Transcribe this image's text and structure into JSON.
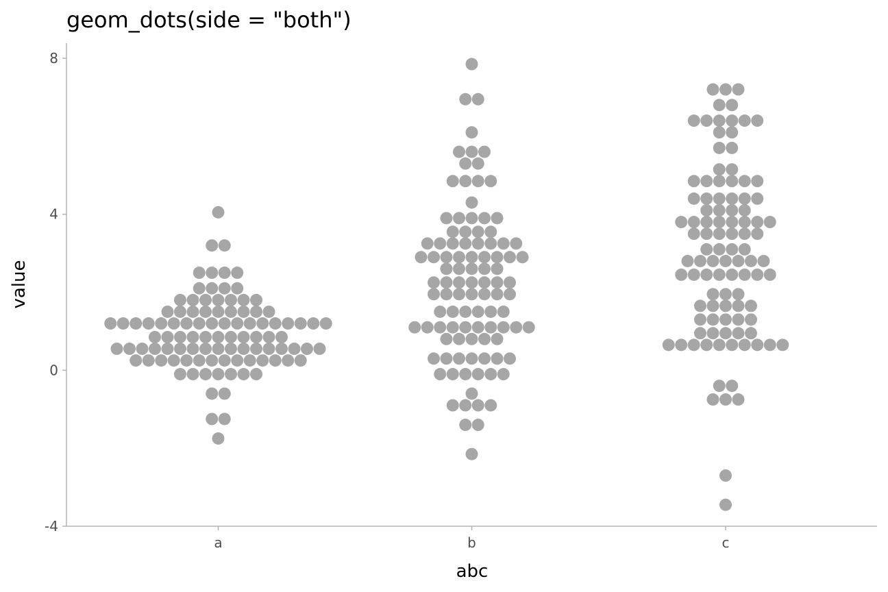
{
  "chart_data": {
    "type": "dotplot",
    "title": "geom_dots(side = \"both\")",
    "xlabel": "abc",
    "ylabel": "value",
    "ylim": [
      -4,
      8
    ],
    "yticks": [
      -4,
      0,
      4,
      8
    ],
    "categories": [
      "a",
      "b",
      "c"
    ],
    "grid": false,
    "dot_color": "#a6a6a6",
    "bins": {
      "a": [
        [
          4.05,
          1
        ],
        [
          3.2,
          2
        ],
        [
          2.5,
          4
        ],
        [
          2.1,
          4
        ],
        [
          1.8,
          7
        ],
        [
          1.5,
          9
        ],
        [
          1.2,
          18
        ],
        [
          0.85,
          11
        ],
        [
          0.55,
          17
        ],
        [
          0.25,
          14
        ],
        [
          -0.1,
          7
        ],
        [
          -0.6,
          2
        ],
        [
          -1.25,
          2
        ],
        [
          -1.75,
          1
        ]
      ],
      "b": [
        [
          7.85,
          1
        ],
        [
          6.95,
          2
        ],
        [
          6.1,
          1
        ],
        [
          5.6,
          3
        ],
        [
          5.3,
          2
        ],
        [
          4.85,
          4
        ],
        [
          4.3,
          1
        ],
        [
          3.9,
          5
        ],
        [
          3.55,
          4
        ],
        [
          3.25,
          8
        ],
        [
          2.9,
          9
        ],
        [
          2.6,
          5
        ],
        [
          2.25,
          7
        ],
        [
          1.95,
          7
        ],
        [
          1.5,
          6
        ],
        [
          1.1,
          10
        ],
        [
          0.8,
          5
        ],
        [
          0.3,
          7
        ],
        [
          -0.1,
          6
        ],
        [
          -0.6,
          1
        ],
        [
          -0.9,
          4
        ],
        [
          -1.4,
          2
        ],
        [
          -2.15,
          1
        ]
      ],
      "c": [
        [
          7.2,
          3
        ],
        [
          6.8,
          2
        ],
        [
          6.4,
          6
        ],
        [
          6.1,
          2
        ],
        [
          5.7,
          2
        ],
        [
          5.15,
          2
        ],
        [
          4.85,
          6
        ],
        [
          4.4,
          6
        ],
        [
          4.1,
          4
        ],
        [
          3.8,
          8
        ],
        [
          3.5,
          6
        ],
        [
          3.1,
          4
        ],
        [
          2.8,
          7
        ],
        [
          2.45,
          8
        ],
        [
          1.95,
          3
        ],
        [
          1.65,
          5
        ],
        [
          1.3,
          5
        ],
        [
          0.95,
          5
        ],
        [
          0.65,
          10
        ],
        [
          -0.4,
          2
        ],
        [
          -0.75,
          3
        ],
        [
          -2.7,
          1
        ],
        [
          -3.45,
          1
        ]
      ]
    }
  }
}
